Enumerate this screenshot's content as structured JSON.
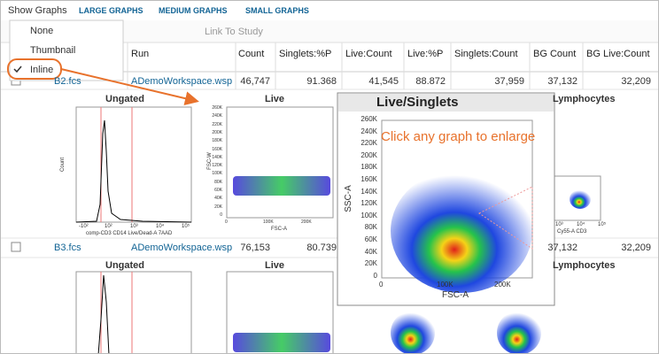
{
  "toolbar": {
    "show_graphs": "Show Graphs",
    "options": [
      "LARGE GRAPHS",
      "MEDIUM GRAPHS",
      "SMALL GRAPHS"
    ],
    "link_to_study": "Link To Study"
  },
  "menu": {
    "items": [
      "None",
      "Thumbnail",
      "Inline"
    ]
  },
  "table": {
    "columns": [
      "Run",
      "Count",
      "Singlets:%P",
      "Live:Count",
      "Live:%P",
      "Singlets:Count",
      "BG Count",
      "BG Live:Count"
    ],
    "rows": [
      {
        "name": "B2.fcs",
        "run": "ADemoWorkspace.wsp",
        "cells": [
          "46,747",
          "91.368",
          "41,545",
          "88.872",
          "37,959",
          "37,132",
          "32,209"
        ]
      },
      {
        "name": "B3.fcs",
        "run": "ADemoWorkspace.wsp",
        "cells": [
          "76,153",
          "80.739",
          null,
          null,
          null,
          "37,132",
          "32,209"
        ]
      }
    ],
    "graph_titles": [
      "Ungated",
      "Live",
      "Lymphocytes"
    ]
  },
  "graphs": {
    "ungated": {
      "y_label": "Count",
      "x_label": "comp-CD3 CD14 Live/Dead-A 7AAD",
      "xticks": [
        "-10²",
        "10²",
        "10³",
        "10⁴",
        "10⁵"
      ]
    },
    "live": {
      "y_label": "FSC-W",
      "x_label": "FSC-A",
      "yticks": [
        "260K",
        "240K",
        "220K",
        "200K",
        "180K",
        "160K",
        "140K",
        "120K",
        "100K",
        "80K",
        "60K",
        "40K",
        "20K",
        "0"
      ],
      "xticks": [
        "0",
        "100K",
        "200K"
      ]
    },
    "lymphocytes": {
      "x_label": "Cy55-A CD3",
      "xticks": [
        "10³",
        "10⁴",
        "10⁵"
      ]
    }
  },
  "popup": {
    "title": "Live/Singlets",
    "y_label": "SSC-A",
    "x_label": "FSC-A",
    "yticks": [
      "260K",
      "240K",
      "220K",
      "200K",
      "180K",
      "160K",
      "140K",
      "120K",
      "100K",
      "80K",
      "60K",
      "40K",
      "20K",
      "0"
    ],
    "xticks": [
      "0",
      "100K",
      "200K"
    ]
  },
  "annotation": "Click any graph to enlarge"
}
